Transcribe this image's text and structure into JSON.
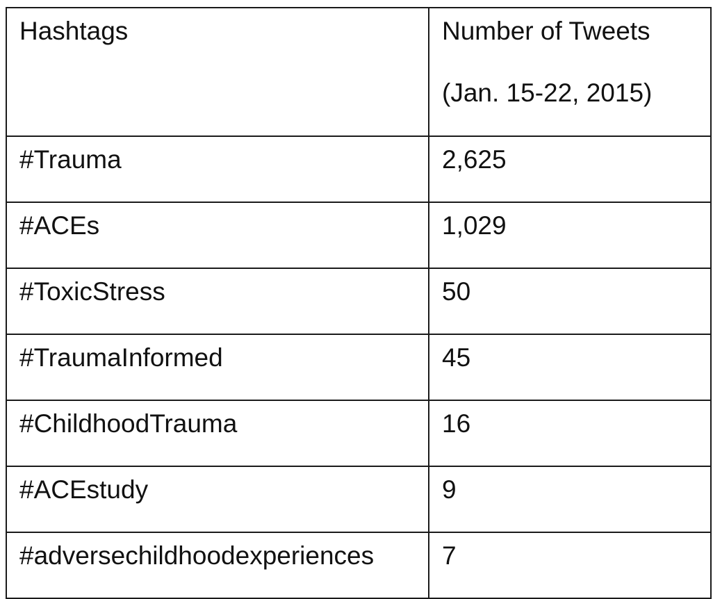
{
  "table": {
    "header": {
      "col1": "Hashtags",
      "col2_line1": "Number of Tweets",
      "col2_line2": "(Jan. 15-22, 2015)"
    },
    "rows": [
      {
        "hashtag": "#Trauma",
        "count": "2,625"
      },
      {
        "hashtag": "#ACEs",
        "count": "1,029"
      },
      {
        "hashtag": "#ToxicStress",
        "count": "50"
      },
      {
        "hashtag": "#TraumaInformed",
        "count": "45"
      },
      {
        "hashtag": "#ChildhoodTrauma",
        "count": "16"
      },
      {
        "hashtag": "#ACEstudy",
        "count": "9"
      },
      {
        "hashtag": "#adversechildhoodexperiences",
        "count": "7"
      }
    ]
  }
}
